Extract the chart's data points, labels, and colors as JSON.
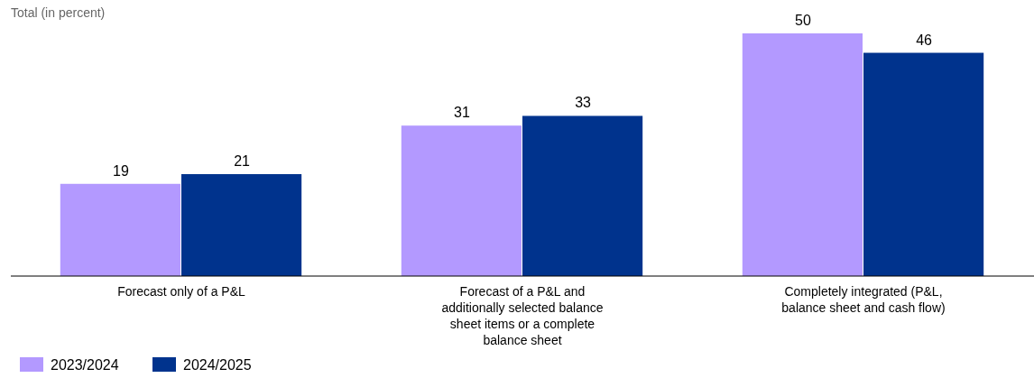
{
  "chart_data": {
    "type": "bar",
    "subtitle": "Total (in percent)",
    "categories": [
      "Forecast only of a P&L",
      "Forecast of a P&L and additionally selected balance sheet items or a complete balance sheet",
      "Completely integrated (P&L, balance sheet and cash flow)"
    ],
    "series": [
      {
        "name": "2023/2024",
        "color": "#b399ff",
        "values": [
          19,
          31,
          50
        ]
      },
      {
        "name": "2024/2025",
        "color": "#00338d",
        "values": [
          21,
          33,
          46
        ]
      }
    ],
    "data_labels": true,
    "legend": "bottom left",
    "grid": false,
    "tick_labels": "x"
  }
}
